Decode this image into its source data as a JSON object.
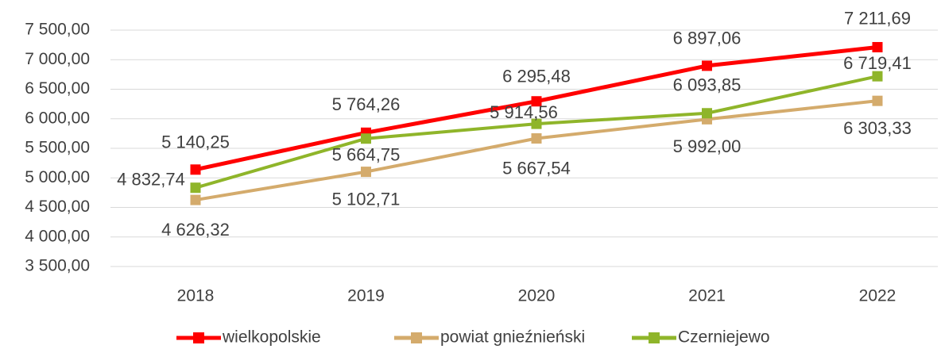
{
  "chart_data": {
    "type": "line",
    "categories": [
      "2018",
      "2019",
      "2020",
      "2021",
      "2022"
    ],
    "series": [
      {
        "name": "wielkopolskie",
        "color": "#ff0000",
        "values": [
          5140.25,
          5764.26,
          6295.48,
          6897.06,
          7211.69
        ],
        "value_labels": [
          "5 140,25",
          "5 764,26",
          "6 295,48",
          "6 897,06",
          "7 211,69"
        ]
      },
      {
        "name": "powiat gnieźnieński",
        "color": "#d4ab6c",
        "values": [
          4626.32,
          5102.71,
          5667.54,
          5992.0,
          6303.33
        ],
        "value_labels": [
          "4 626,32",
          "5 102,71",
          "5 667,54",
          "5 992,00",
          "6 303,33"
        ]
      },
      {
        "name": "Czerniejewo",
        "color": "#8fb52a",
        "values": [
          4832.74,
          5664.75,
          5914.56,
          6093.85,
          6719.41
        ],
        "value_labels": [
          "4 832,74",
          "5 664,75",
          "5 914,56",
          "6 093,85",
          "6 719,41"
        ]
      }
    ],
    "ylim": [
      3500,
      7500
    ],
    "yticks": [
      {
        "value": 3500,
        "label": "3 500,00"
      },
      {
        "value": 4000,
        "label": "4 000,00"
      },
      {
        "value": 4500,
        "label": "4 500,00"
      },
      {
        "value": 5000,
        "label": "5 000,00"
      },
      {
        "value": 5500,
        "label": "5 500,00"
      },
      {
        "value": 6000,
        "label": "6 000,00"
      },
      {
        "value": 6500,
        "label": "6 500,00"
      },
      {
        "value": 7000,
        "label": "7 000,00"
      },
      {
        "value": 7500,
        "label": "7 500,00"
      }
    ],
    "grid": true,
    "legend": "bottom"
  }
}
